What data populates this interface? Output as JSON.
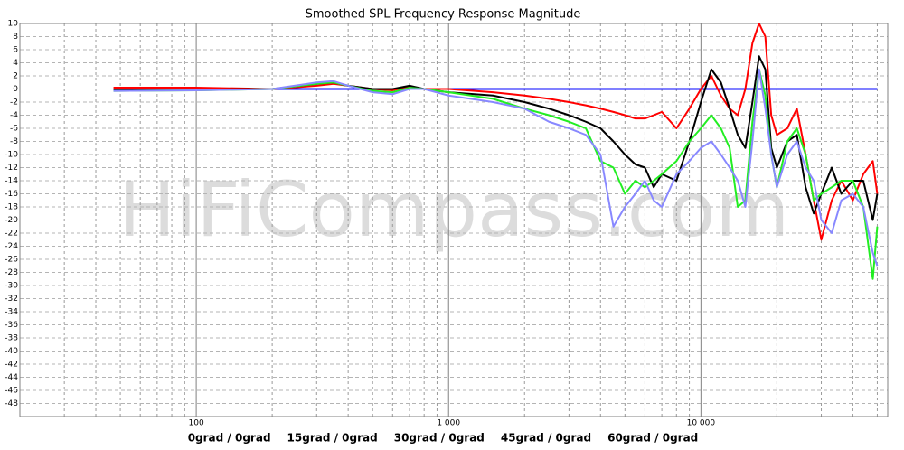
{
  "chart_data": {
    "type": "line",
    "title": "Smoothed SPL Frequency Response Magnitude",
    "watermark": "HiFiCompass.com",
    "xscale": "log",
    "grid": true,
    "xlim": [
      20,
      55000
    ],
    "ylim": [
      -50,
      10
    ],
    "xticks": [
      {
        "value": 100,
        "label": "100"
      },
      {
        "value": 1000,
        "label": "1 000"
      },
      {
        "value": 10000,
        "label": "10 000"
      }
    ],
    "xminorticks": [
      20,
      30,
      40,
      50,
      60,
      70,
      80,
      90,
      200,
      300,
      400,
      500,
      600,
      700,
      800,
      900,
      2000,
      3000,
      4000,
      5000,
      6000,
      7000,
      8000,
      9000,
      20000,
      30000,
      40000,
      50000
    ],
    "yticks": [
      10,
      8,
      6,
      4,
      2,
      0,
      -2,
      -4,
      -6,
      -8,
      -10,
      -12,
      -14,
      -16,
      -18,
      -20,
      -22,
      -24,
      -26,
      -28,
      -30,
      -32,
      -34,
      -36,
      -38,
      -40,
      -42,
      -44,
      -46,
      -48
    ],
    "x": [
      47,
      100,
      200,
      300,
      350,
      400,
      500,
      600,
      700,
      800,
      1000,
      1500,
      2000,
      2500,
      3000,
      3500,
      4000,
      4500,
      5000,
      5500,
      6000,
      6500,
      7000,
      8000,
      9000,
      10000,
      11000,
      12000,
      13000,
      14000,
      15000,
      16000,
      17000,
      18000,
      19000,
      20000,
      22000,
      24000,
      26000,
      28000,
      30000,
      33000,
      36000,
      40000,
      44000,
      48000,
      50000
    ],
    "series": [
      {
        "name": "0grad / 0grad",
        "color": "#0000ff",
        "values": [
          0,
          0,
          0,
          0,
          0,
          0,
          0,
          0,
          0,
          0,
          0,
          0,
          0,
          0,
          0,
          0,
          0,
          0,
          0,
          0,
          0,
          0,
          0,
          0,
          0,
          0,
          0,
          0,
          0,
          0,
          0,
          0,
          0,
          0,
          0,
          0,
          0,
          0,
          0,
          0,
          0,
          0,
          0,
          0,
          0,
          0,
          0
        ]
      },
      {
        "name": "15grad / 0grad",
        "color": "#ff0000",
        "values": [
          0.2,
          0.2,
          0,
          0.5,
          0.8,
          0.5,
          0,
          -0.2,
          0.3,
          0,
          0,
          -0.5,
          -1,
          -1.5,
          -2,
          -2.5,
          -3,
          -3.5,
          -4,
          -4.5,
          -4.5,
          -4,
          -3.5,
          -6,
          -3,
          0,
          2,
          -1,
          -3,
          -4,
          0,
          7,
          10,
          8,
          -4,
          -7,
          -6,
          -3,
          -10,
          -17,
          -23,
          -17,
          -14,
          -17,
          -13,
          -11,
          -16
        ]
      },
      {
        "name": "30grad / 0grad",
        "color": "#000000",
        "values": [
          -0.2,
          -0.1,
          0,
          0.8,
          1,
          0.5,
          0,
          0,
          0.5,
          0,
          -0.5,
          -1,
          -2,
          -3,
          -4,
          -5,
          -6,
          -8,
          -10,
          -11.5,
          -12,
          -15,
          -13,
          -14,
          -8,
          -2,
          3,
          1,
          -3,
          -7,
          -9,
          -2,
          5,
          3,
          -9,
          -12,
          -8,
          -7,
          -15,
          -19,
          -16,
          -12,
          -16,
          -14,
          -14,
          -20,
          -16
        ]
      },
      {
        "name": "45grad / 0grad",
        "color": "#22ee22",
        "values": [
          -0.3,
          -0.2,
          0,
          0.8,
          1,
          0.5,
          -0.3,
          -0.5,
          0.2,
          0,
          -0.5,
          -1.5,
          -3,
          -4,
          -5,
          -6,
          -11,
          -12,
          -16,
          -14,
          -15,
          -14,
          -13,
          -11,
          -8,
          -6,
          -4,
          -6,
          -9,
          -18,
          -17,
          -5,
          3,
          -1,
          -10,
          -15,
          -8,
          -6,
          -10,
          -17,
          -16,
          -15,
          -14,
          -14,
          -18,
          -29,
          -21
        ]
      },
      {
        "name": "60grad / 0grad",
        "color": "#8888ff",
        "values": [
          -0.3,
          -0.2,
          0,
          1,
          1.2,
          0.5,
          -0.5,
          -0.8,
          0,
          0,
          -1,
          -2,
          -3,
          -5,
          -6,
          -7,
          -10,
          -21,
          -18,
          -16,
          -14,
          -17,
          -18,
          -13,
          -11,
          -9,
          -8,
          -10,
          -12,
          -14,
          -18,
          -8,
          3,
          -3,
          -10,
          -15,
          -10,
          -8,
          -12,
          -14,
          -20,
          -22,
          -17,
          -16,
          -18,
          -25,
          -27
        ]
      }
    ]
  }
}
